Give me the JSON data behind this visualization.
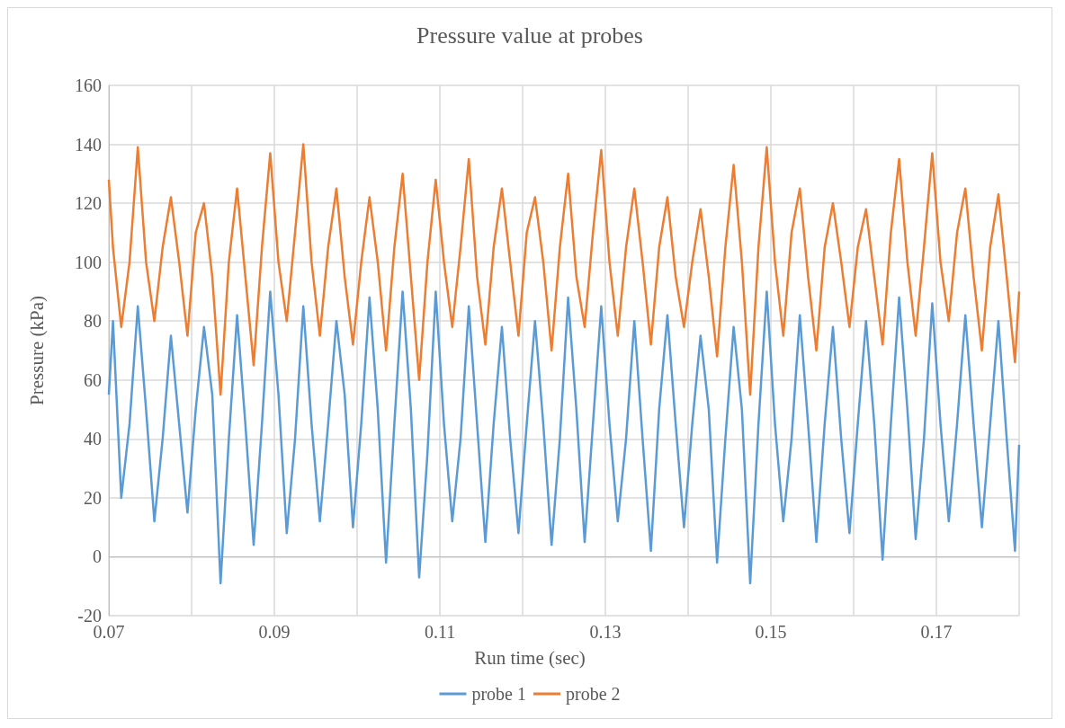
{
  "chart_data": {
    "type": "line",
    "title": "Pressure value at probes",
    "xlabel": "Run time (sec)",
    "ylabel": "Pressure (kPa)",
    "x": [
      0.07,
      0.0705,
      0.0715,
      0.0725,
      0.0735,
      0.0745,
      0.0755,
      0.0765,
      0.0775,
      0.0785,
      0.0795,
      0.0805,
      0.0815,
      0.0825,
      0.0835,
      0.0845,
      0.0855,
      0.0865,
      0.0875,
      0.0885,
      0.0895,
      0.0905,
      0.0915,
      0.0925,
      0.0935,
      0.0945,
      0.0955,
      0.0965,
      0.0975,
      0.0985,
      0.0995,
      0.1005,
      0.1015,
      0.1025,
      0.1035,
      0.1045,
      0.1055,
      0.1065,
      0.1075,
      0.1085,
      0.1095,
      0.1105,
      0.1115,
      0.1125,
      0.1135,
      0.1145,
      0.1155,
      0.1165,
      0.1175,
      0.1185,
      0.1195,
      0.1205,
      0.1215,
      0.1225,
      0.1235,
      0.1245,
      0.1255,
      0.1265,
      0.1275,
      0.1285,
      0.1295,
      0.1305,
      0.1315,
      0.1325,
      0.1335,
      0.1345,
      0.1355,
      0.1365,
      0.1375,
      0.1385,
      0.1395,
      0.1405,
      0.1415,
      0.1425,
      0.1435,
      0.1445,
      0.1455,
      0.1465,
      0.1475,
      0.1485,
      0.1495,
      0.1505,
      0.1515,
      0.1525,
      0.1535,
      0.1545,
      0.1555,
      0.1565,
      0.1575,
      0.1585,
      0.1595,
      0.1605,
      0.1615,
      0.1625,
      0.1635,
      0.1645,
      0.1655,
      0.1665,
      0.1675,
      0.1685,
      0.1695,
      0.1705,
      0.1715,
      0.1725,
      0.1735,
      0.1745,
      0.1755,
      0.1765,
      0.1775,
      0.1785,
      0.1795,
      0.18
    ],
    "series": [
      {
        "name": "probe 1",
        "color": "#5b9bd5",
        "values": [
          55,
          80,
          20,
          45,
          85,
          50,
          12,
          40,
          75,
          45,
          15,
          50,
          78,
          55,
          -9,
          40,
          82,
          45,
          4,
          45,
          90,
          55,
          8,
          40,
          85,
          45,
          12,
          45,
          80,
          55,
          10,
          45,
          88,
          50,
          -2,
          45,
          90,
          50,
          -7,
          35,
          90,
          45,
          12,
          40,
          85,
          45,
          5,
          45,
          78,
          40,
          8,
          45,
          80,
          45,
          4,
          40,
          88,
          50,
          5,
          45,
          85,
          45,
          12,
          40,
          80,
          40,
          2,
          50,
          82,
          45,
          10,
          45,
          75,
          50,
          -2,
          40,
          78,
          50,
          -9,
          45,
          90,
          45,
          12,
          40,
          82,
          45,
          5,
          45,
          78,
          40,
          8,
          45,
          80,
          45,
          -1,
          45,
          88,
          50,
          6,
          40,
          86,
          45,
          12,
          45,
          82,
          45,
          10,
          45,
          80,
          40,
          2,
          38
        ]
      },
      {
        "name": "probe 2",
        "color": "#ed7d31",
        "values": [
          128,
          105,
          78,
          100,
          139,
          100,
          80,
          105,
          122,
          100,
          75,
          110,
          120,
          95,
          55,
          100,
          125,
          95,
          65,
          105,
          137,
          100,
          80,
          110,
          140,
          100,
          75,
          105,
          125,
          95,
          72,
          100,
          122,
          100,
          70,
          105,
          130,
          95,
          60,
          100,
          128,
          100,
          78,
          105,
          135,
          95,
          72,
          105,
          125,
          100,
          75,
          110,
          122,
          100,
          70,
          105,
          130,
          95,
          78,
          110,
          138,
          100,
          75,
          105,
          125,
          100,
          72,
          105,
          122,
          95,
          78,
          100,
          118,
          95,
          68,
          105,
          133,
          100,
          55,
          105,
          139,
          100,
          75,
          110,
          125,
          95,
          70,
          105,
          120,
          100,
          78,
          105,
          118,
          95,
          72,
          110,
          135,
          100,
          75,
          105,
          137,
          100,
          80,
          110,
          125,
          95,
          70,
          105,
          123,
          95,
          66,
          90
        ]
      }
    ],
    "xlim": [
      0.07,
      0.18
    ],
    "xticks": [
      0.07,
      {
        "value": 0.08,
        "label": null
      },
      0.09,
      {
        "value": 0.1,
        "label": null
      },
      0.11,
      {
        "value": 0.12,
        "label": null
      },
      0.13,
      {
        "value": 0.14,
        "label": null
      },
      0.15,
      {
        "value": 0.16,
        "label": null
      },
      0.17,
      {
        "value": 0.18,
        "label": null
      }
    ],
    "ylim": [
      -20,
      160
    ],
    "yticks": [
      -20,
      0,
      20,
      40,
      60,
      80,
      100,
      120,
      140,
      160
    ],
    "grid": true,
    "legend": "bottom",
    "marker": "none",
    "line_style": "solid"
  }
}
